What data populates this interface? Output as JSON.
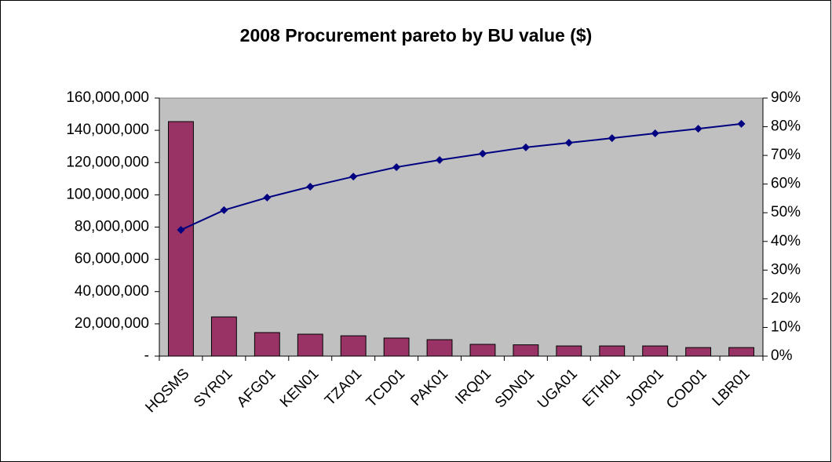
{
  "chart_data": {
    "type": "pareto",
    "title": "2008 Procurement pareto by BU value ($)",
    "categories": [
      "HQSMS",
      "SYR01",
      "AFG01",
      "KEN01",
      "TZA01",
      "TCD01",
      "PAK01",
      "IRQ01",
      "SDN01",
      "UGA01",
      "ETH01",
      "JOR01",
      "COD01",
      "LBR01"
    ],
    "series": [
      {
        "type": "bar",
        "color": "#993366",
        "values": [
          145400000,
          24300000,
          14600000,
          13600000,
          12600000,
          11200000,
          10200000,
          7300000,
          7000000,
          6300000,
          6300000,
          6300000,
          5300000,
          5300000
        ]
      },
      {
        "type": "line",
        "axis": "y2",
        "color": "#000080",
        "values": [
          44.0,
          50.9,
          55.3,
          59.1,
          62.6,
          65.9,
          68.4,
          70.6,
          72.8,
          74.4,
          76.0,
          77.7,
          79.3,
          81.0
        ]
      }
    ],
    "ylim": [
      0,
      160000000
    ],
    "yticks": [
      {
        "value": 0,
        "label": "-"
      },
      {
        "value": 20000000,
        "label": "20,000,000"
      },
      {
        "value": 40000000,
        "label": "40,000,000"
      },
      {
        "value": 60000000,
        "label": "60,000,000"
      },
      {
        "value": 80000000,
        "label": "80,000,000"
      },
      {
        "value": 100000000,
        "label": "100,000,000"
      },
      {
        "value": 120000000,
        "label": "120,000,000"
      },
      {
        "value": 140000000,
        "label": "140,000,000"
      },
      {
        "value": 160000000,
        "label": "160,000,000"
      }
    ],
    "y2lim": [
      0,
      90
    ],
    "y2ticks": [
      {
        "value": 0,
        "label": "0%"
      },
      {
        "value": 10,
        "label": "10%"
      },
      {
        "value": 20,
        "label": "20%"
      },
      {
        "value": 30,
        "label": "30%"
      },
      {
        "value": 40,
        "label": "40%"
      },
      {
        "value": 50,
        "label": "50%"
      },
      {
        "value": 60,
        "label": "60%"
      },
      {
        "value": 70,
        "label": "70%"
      },
      {
        "value": 80,
        "label": "80%"
      },
      {
        "value": 90,
        "label": "90%"
      }
    ],
    "grid": false,
    "plot_background": "#c0c0c0"
  }
}
